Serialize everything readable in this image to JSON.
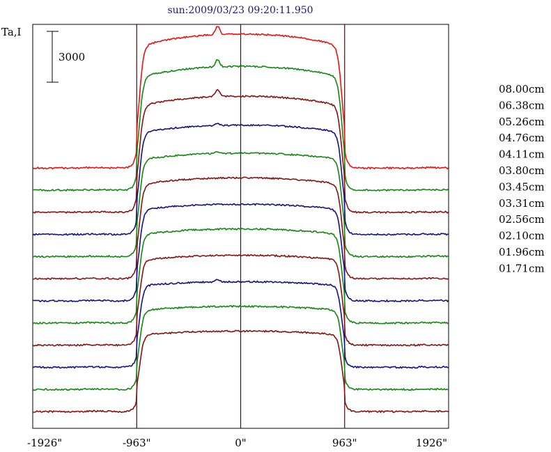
{
  "chart_data": {
    "type": "line",
    "title": "sun:2009/03/23 09:20:11.950",
    "ylabel": "Ta,I",
    "scale_bar_label": "3000",
    "scale_bar_value": 3000,
    "x_ticks": [
      {
        "value": -1926,
        "label": "-1926\""
      },
      {
        "value": -963,
        "label": "-963\""
      },
      {
        "value": 0,
        "label": "0\""
      },
      {
        "value": 963,
        "label": "963\""
      },
      {
        "value": 1926,
        "label": "1926\""
      }
    ],
    "xlim": [
      -1926,
      1926
    ],
    "vertical_lines_at": [
      -963,
      0,
      963
    ],
    "grid": false,
    "legend_position": "right",
    "solar_radius": 963,
    "limb_width": 55,
    "series": [
      {
        "name": "08.00cm",
        "color": "#ee1111",
        "baseline": 0,
        "amplitude": 7150,
        "center_amp": 7900,
        "fine_peak": 500
      },
      {
        "name": "06.38cm",
        "color": "#118811",
        "baseline": 0,
        "amplitude": 6650,
        "center_amp": 7300,
        "fine_peak": 450
      },
      {
        "name": "05.26cm",
        "color": "#881111",
        "baseline": 0,
        "amplitude": 6250,
        "center_amp": 6850,
        "fine_peak": 400
      },
      {
        "name": "04.76cm",
        "color": "#111188",
        "baseline": 0,
        "amplitude": 6000,
        "center_amp": 6450,
        "fine_peak": 120
      },
      {
        "name": "04.11cm",
        "color": "#118811",
        "baseline": 0,
        "amplitude": 5700,
        "center_amp": 6100,
        "fine_peak": 110
      },
      {
        "name": "03.80cm",
        "color": "#881111",
        "baseline": 0,
        "amplitude": 5550,
        "center_amp": 5950,
        "fine_peak": 0
      },
      {
        "name": "03.45cm",
        "color": "#111188",
        "baseline": 0,
        "amplitude": 5350,
        "center_amp": 5700,
        "fine_peak": 0
      },
      {
        "name": "03.31cm",
        "color": "#118811",
        "baseline": 0,
        "amplitude": 5200,
        "center_amp": 5550,
        "fine_peak": 0
      },
      {
        "name": "02.56cm",
        "color": "#881111",
        "baseline": 0,
        "amplitude": 5000,
        "center_amp": 5300,
        "fine_peak": 0
      },
      {
        "name": "02.10cm",
        "color": "#111188",
        "baseline": 0,
        "amplitude": 4800,
        "center_amp": 5050,
        "fine_peak": 120
      },
      {
        "name": "01.96cm",
        "color": "#118811",
        "baseline": 0,
        "amplitude": 4650,
        "center_amp": 4900,
        "fine_peak": 0
      },
      {
        "name": "01.71cm",
        "color": "#881111",
        "baseline": 0,
        "amplitude": 4500,
        "center_amp": 4750,
        "fine_peak": 0
      }
    ]
  }
}
